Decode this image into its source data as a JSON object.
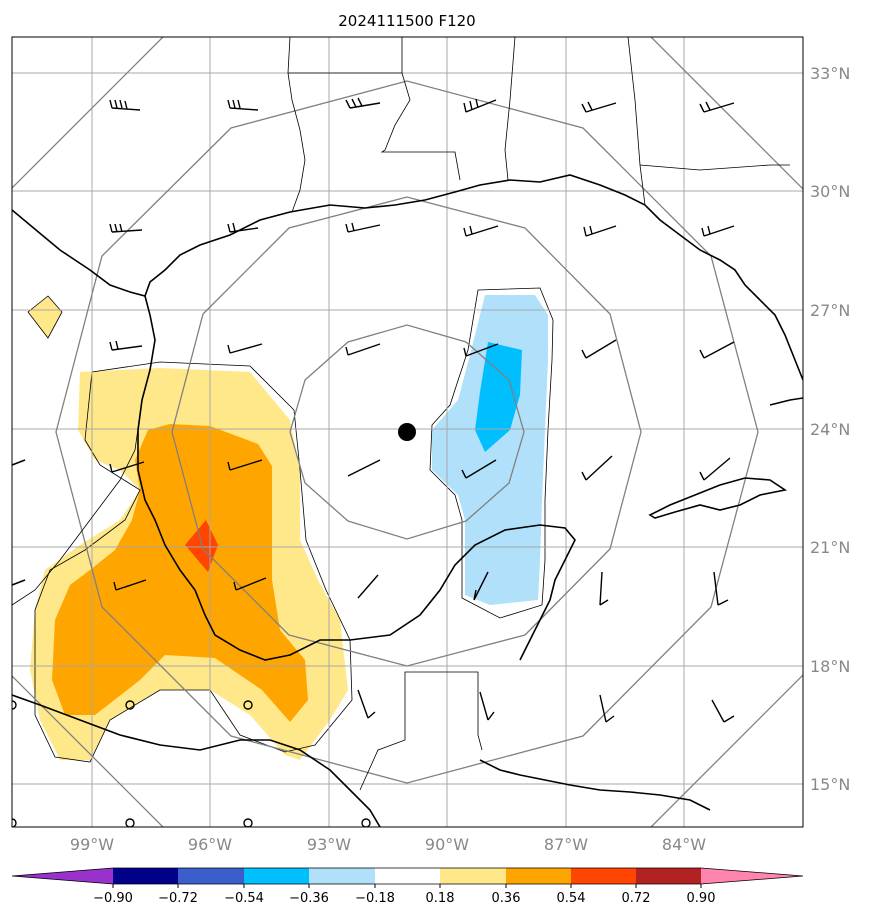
{
  "title": "2024111500 F120",
  "latitude_labels": [
    "33°N",
    "30°N",
    "27°N",
    "24°N",
    "21°N",
    "18°N",
    "15°N"
  ],
  "longitude_labels": [
    "99°W",
    "96°W",
    "93°W",
    "90°W",
    "87°W",
    "84°W"
  ],
  "colorbar": {
    "tick_labels": [
      "−0.90",
      "−0.72",
      "−0.54",
      "−0.36",
      "−0.18",
      "0.18",
      "0.36",
      "0.54",
      "0.72",
      "0.90"
    ],
    "colors": [
      "#9932cc",
      "#00008b",
      "#3a5fcd",
      "#00bfff",
      "#b0e0fa",
      "#ffffff",
      "#ffe88a",
      "#ffa500",
      "#ff4500",
      "#b22222",
      "#ff85b0"
    ]
  },
  "storm_center_marker": "filled-black-circle",
  "colors": {
    "grid": "#a8a8a8",
    "range_rings": "#808080",
    "coastline": "#000000",
    "tick_labels": "#888888",
    "fill_pos_low": "#ffe88a",
    "fill_pos_mid": "#ffa500",
    "fill_pos_high": "#ff4500",
    "fill_neg_low": "#b0e0fa",
    "fill_neg_mid": "#00bfff"
  }
}
